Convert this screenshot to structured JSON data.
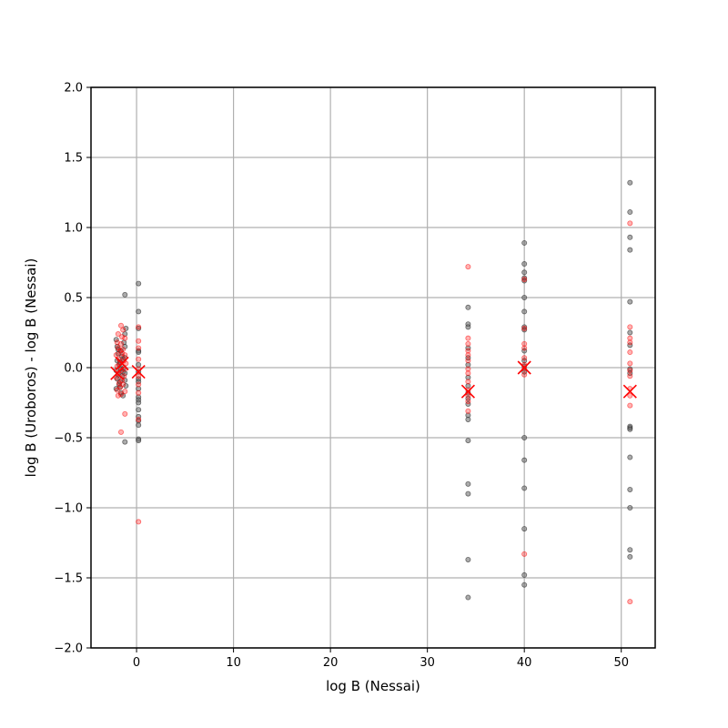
{
  "chart_data": {
    "type": "scatter",
    "title": "",
    "xlabel": "log B (Nessai)",
    "ylabel": "log B (Uroboros) - log B (Nessai)",
    "xlim": [
      -4.7,
      53.5
    ],
    "ylim": [
      -2.0,
      2.0
    ],
    "xticks": [
      0,
      10,
      20,
      30,
      40,
      50
    ],
    "yticks": [
      -2.0,
      -1.5,
      -1.0,
      -0.5,
      0.0,
      0.5,
      1.0,
      1.5,
      2.0
    ],
    "xtick_labels": [
      "0",
      "10",
      "20",
      "30",
      "40",
      "50"
    ],
    "ytick_labels": [
      "−2.0",
      "−1.5",
      "−1.0",
      "−0.5",
      "0.0",
      "0.5",
      "1.0",
      "1.5",
      "2.0"
    ],
    "grid": true,
    "colors": {
      "gray": "#555555",
      "red": "#ff0000",
      "mean": "#ff0000",
      "grid": "#b0b0b0"
    },
    "series": [
      {
        "color": "gray",
        "marker": "dot",
        "points": [
          [
            -2.1,
            0.2
          ],
          [
            -2.0,
            0.15
          ],
          [
            -1.9,
            0.1
          ],
          [
            -2.0,
            0.05
          ],
          [
            -1.8,
            0.02
          ],
          [
            -2.1,
            -0.02
          ],
          [
            -1.9,
            -0.05
          ],
          [
            -2.0,
            -0.08
          ],
          [
            -1.8,
            -0.12
          ],
          [
            -2.1,
            -0.15
          ],
          [
            -1.6,
            0.12
          ],
          [
            -1.5,
            0.08
          ],
          [
            -1.7,
            0.04
          ],
          [
            -1.6,
            -0.01
          ],
          [
            -1.5,
            -0.06
          ],
          [
            -1.7,
            -0.1
          ],
          [
            -1.6,
            -0.18
          ],
          [
            -1.4,
            -0.2
          ],
          [
            -1.3,
            0.18
          ],
          [
            -1.3,
            0.0
          ],
          [
            -1.4,
            -0.03
          ],
          [
            -1.4,
            0.06
          ],
          [
            -1.2,
            0.24
          ],
          [
            -1.2,
            0.15
          ],
          [
            -1.2,
            0.07
          ],
          [
            -1.2,
            -0.04
          ],
          [
            -1.2,
            -0.09
          ],
          [
            -1.1,
            0.28
          ],
          [
            -1.1,
            -0.13
          ],
          [
            -1.2,
            0.52
          ],
          [
            -1.2,
            -0.53
          ],
          [
            -1.9,
            0.13
          ],
          [
            -1.7,
            -0.14
          ],
          [
            0.2,
            0.6
          ],
          [
            0.2,
            0.4
          ],
          [
            0.2,
            0.28
          ],
          [
            0.2,
            0.12
          ],
          [
            0.2,
            0.11
          ],
          [
            0.2,
            0.02
          ],
          [
            0.2,
            -0.03
          ],
          [
            0.2,
            -0.08
          ],
          [
            0.2,
            -0.1
          ],
          [
            0.2,
            -0.15
          ],
          [
            0.2,
            -0.21
          ],
          [
            0.2,
            -0.23
          ],
          [
            0.2,
            -0.25
          ],
          [
            0.2,
            -0.3
          ],
          [
            0.2,
            -0.35
          ],
          [
            0.2,
            -0.38
          ],
          [
            0.2,
            -0.41
          ],
          [
            0.2,
            -0.51
          ],
          [
            0.2,
            -0.52
          ],
          [
            34.2,
            0.43
          ],
          [
            34.2,
            0.31
          ],
          [
            34.2,
            0.29
          ],
          [
            34.2,
            0.14
          ],
          [
            34.2,
            0.07
          ],
          [
            34.2,
            0.02
          ],
          [
            34.2,
            -0.07
          ],
          [
            34.2,
            -0.13
          ],
          [
            34.2,
            -0.18
          ],
          [
            34.2,
            -0.22
          ],
          [
            34.2,
            -0.26
          ],
          [
            34.2,
            -0.34
          ],
          [
            34.2,
            -0.37
          ],
          [
            34.2,
            -0.52
          ],
          [
            34.2,
            -0.83
          ],
          [
            34.2,
            -0.9
          ],
          [
            34.2,
            -1.37
          ],
          [
            34.2,
            -1.64
          ],
          [
            40.0,
            0.89
          ],
          [
            40.0,
            0.74
          ],
          [
            40.0,
            0.68
          ],
          [
            40.0,
            0.64
          ],
          [
            40.0,
            0.62
          ],
          [
            40.0,
            0.5
          ],
          [
            40.0,
            0.4
          ],
          [
            40.0,
            0.29
          ],
          [
            40.0,
            0.27
          ],
          [
            40.0,
            0.12
          ],
          [
            40.0,
            0.05
          ],
          [
            40.0,
            0.01
          ],
          [
            40.0,
            -0.03
          ],
          [
            40.0,
            -0.5
          ],
          [
            40.0,
            -0.66
          ],
          [
            40.0,
            -0.86
          ],
          [
            40.0,
            -1.15
          ],
          [
            40.0,
            -1.48
          ],
          [
            40.0,
            -1.55
          ],
          [
            50.9,
            1.32
          ],
          [
            50.9,
            1.11
          ],
          [
            50.9,
            0.93
          ],
          [
            50.9,
            0.84
          ],
          [
            50.9,
            0.47
          ],
          [
            50.9,
            0.25
          ],
          [
            50.9,
            0.16
          ],
          [
            50.9,
            -0.01
          ],
          [
            50.9,
            -0.04
          ],
          [
            50.9,
            -0.42
          ],
          [
            50.9,
            -0.43
          ],
          [
            50.9,
            -0.44
          ],
          [
            50.9,
            -0.64
          ],
          [
            50.9,
            -0.87
          ],
          [
            50.9,
            -1.0
          ],
          [
            50.9,
            -1.3
          ],
          [
            50.9,
            -1.35
          ]
        ]
      },
      {
        "color": "red",
        "marker": "dot",
        "points": [
          [
            -2.0,
            0.18
          ],
          [
            -1.9,
            0.14
          ],
          [
            -2.1,
            0.09
          ],
          [
            -1.8,
            0.06
          ],
          [
            -2.0,
            0.01
          ],
          [
            -1.9,
            -0.04
          ],
          [
            -2.1,
            -0.07
          ],
          [
            -1.8,
            -0.11
          ],
          [
            -2.0,
            -0.16
          ],
          [
            -1.9,
            -0.2
          ],
          [
            -1.6,
            0.3
          ],
          [
            -1.5,
            0.22
          ],
          [
            -1.6,
            0.17
          ],
          [
            -1.5,
            0.1
          ],
          [
            -1.7,
            0.03
          ],
          [
            -1.6,
            -0.02
          ],
          [
            -1.5,
            -0.09
          ],
          [
            -1.7,
            -0.14
          ],
          [
            -1.6,
            -0.19
          ],
          [
            -1.4,
            0.27
          ],
          [
            -1.4,
            0.13
          ],
          [
            -1.3,
            0.05
          ],
          [
            -1.3,
            -0.06
          ],
          [
            -1.4,
            -0.12
          ],
          [
            -1.2,
            0.21
          ],
          [
            -1.2,
            0.09
          ],
          [
            -1.2,
            -0.01
          ],
          [
            -1.2,
            -0.17
          ],
          [
            -1.1,
            0.03
          ],
          [
            -1.2,
            -0.33
          ],
          [
            -1.6,
            -0.46
          ],
          [
            -1.9,
            0.24
          ],
          [
            -1.7,
            0.12
          ],
          [
            0.2,
            0.29
          ],
          [
            0.2,
            0.19
          ],
          [
            0.2,
            0.14
          ],
          [
            0.2,
            0.06
          ],
          [
            0.2,
            -0.01
          ],
          [
            0.2,
            -0.06
          ],
          [
            0.2,
            -0.12
          ],
          [
            0.2,
            -0.18
          ],
          [
            0.2,
            -0.37
          ],
          [
            0.2,
            -1.1
          ],
          [
            34.2,
            0.72
          ],
          [
            34.2,
            0.21
          ],
          [
            34.2,
            0.17
          ],
          [
            34.2,
            0.12
          ],
          [
            34.2,
            0.09
          ],
          [
            34.2,
            0.05
          ],
          [
            34.2,
            -0.01
          ],
          [
            34.2,
            -0.04
          ],
          [
            34.2,
            -0.1
          ],
          [
            34.2,
            -0.16
          ],
          [
            34.2,
            -0.2
          ],
          [
            34.2,
            -0.24
          ],
          [
            34.2,
            -0.31
          ],
          [
            40.0,
            0.63
          ],
          [
            40.0,
            0.28
          ],
          [
            40.0,
            0.17
          ],
          [
            40.0,
            0.14
          ],
          [
            40.0,
            0.07
          ],
          [
            40.0,
            0.02
          ],
          [
            40.0,
            -0.01
          ],
          [
            40.0,
            -0.05
          ],
          [
            40.0,
            -1.33
          ],
          [
            50.9,
            1.03
          ],
          [
            50.9,
            0.29
          ],
          [
            50.9,
            0.21
          ],
          [
            50.9,
            0.18
          ],
          [
            50.9,
            0.11
          ],
          [
            50.9,
            0.03
          ],
          [
            50.9,
            -0.02
          ],
          [
            50.9,
            -0.06
          ],
          [
            50.9,
            -0.15
          ],
          [
            50.9,
            -0.2
          ],
          [
            50.9,
            -0.27
          ],
          [
            50.9,
            -1.67
          ]
        ]
      },
      {
        "color": "mean",
        "marker": "x",
        "points": [
          [
            -2.0,
            -0.04
          ],
          [
            -1.5,
            0.03
          ],
          [
            0.2,
            -0.03
          ],
          [
            34.2,
            -0.17
          ],
          [
            40.0,
            0.0
          ],
          [
            50.9,
            -0.17
          ]
        ]
      }
    ]
  }
}
